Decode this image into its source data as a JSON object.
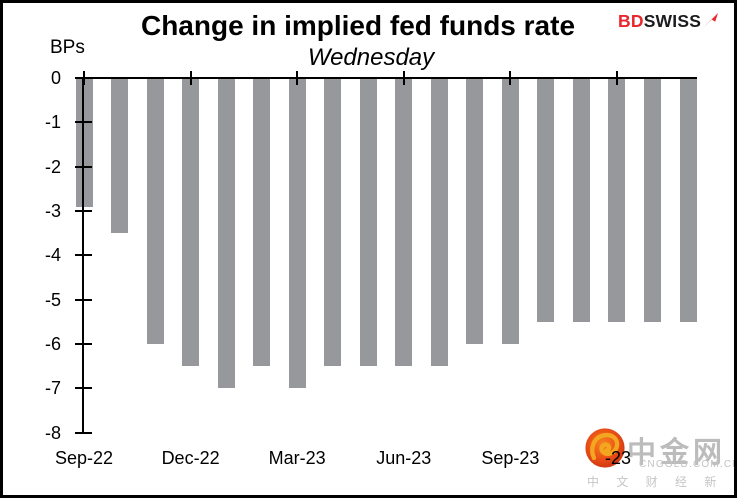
{
  "header": {
    "title": "Change in implied fed funds rate",
    "subtitle": "Wednesday",
    "units_label": "BPs",
    "brand": {
      "bd": "BD",
      "swiss": "SWISS",
      "bd_color": "#e8282d",
      "swiss_color": "#1c1c1e"
    }
  },
  "chart_data": {
    "type": "bar",
    "title": "Change in implied fed funds rate",
    "subtitle": "Wednesday",
    "ylabel": "BPs",
    "ylim": [
      -8,
      0
    ],
    "y_tick_labels": [
      "0",
      "-1",
      "-2",
      "-3",
      "-4",
      "-5",
      "-6",
      "-7",
      "-8"
    ],
    "x_tick_labels": [
      "Sep-22",
      "Dec-22",
      "Mar-23",
      "Jun-23",
      "Sep-23",
      "Dec-23"
    ],
    "x_tick_every": 3,
    "n_bars": 18,
    "values": [
      -2.9,
      -3.5,
      -6.0,
      -6.5,
      -7.0,
      -6.5,
      -7.0,
      -6.5,
      -6.5,
      -6.5,
      -6.5,
      -6.0,
      -6.0,
      -5.5,
      -5.5,
      -5.5,
      -5.5,
      -5.5
    ],
    "bar_color": "#97989c",
    "axis_color": "#000000",
    "grid": false,
    "legend": false,
    "last_tick_label_visible_part": "-23"
  },
  "watermark": {
    "name": "中金网",
    "domain": "CNGOLD.COM.CN",
    "tagline": "中 文 财 经 新 媒 体",
    "logo_colors": {
      "circle_outer": "#c93012",
      "circle_inner": "#f8861e",
      "swirl": "#f3a61f"
    }
  }
}
